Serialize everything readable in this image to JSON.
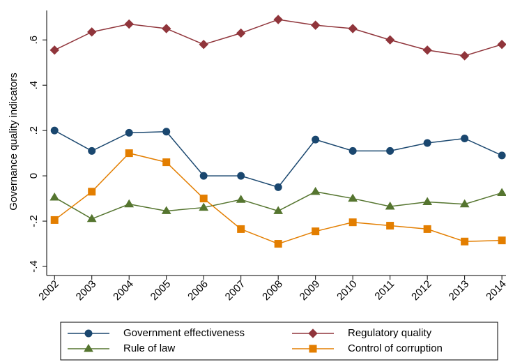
{
  "chart_data": {
    "type": "line",
    "y_label": "Governance quality indicators",
    "x": [
      2002,
      2003,
      2004,
      2005,
      2006,
      2007,
      2008,
      2009,
      2010,
      2011,
      2012,
      2013,
      2014
    ],
    "xlim": [
      2001.79,
      2014.11
    ],
    "xticks": [
      2002,
      2003,
      2004,
      2005,
      2006,
      2007,
      2008,
      2009,
      2010,
      2011,
      2012,
      2013,
      2014
    ],
    "ylim": [
      -0.44,
      0.73
    ],
    "yticks": [
      {
        "value": -0.4,
        "label": "-.4"
      },
      {
        "value": -0.2,
        "label": "-.2"
      },
      0,
      {
        "value": 0.2,
        "label": ".2"
      },
      {
        "value": 0.4,
        "label": ".4"
      },
      {
        "value": 0.6,
        "label": ".6"
      }
    ],
    "series": [
      {
        "name": "Government effectiveness",
        "color": "#1a476f",
        "marker": "circle",
        "values": [
          0.2,
          0.11,
          0.19,
          0.195,
          0.0,
          0.0,
          -0.05,
          0.16,
          0.11,
          0.11,
          0.145,
          0.165,
          0.09
        ]
      },
      {
        "name": "Regulatory quality",
        "color": "#90353b",
        "marker": "diamond",
        "values": [
          0.555,
          0.635,
          0.67,
          0.65,
          0.58,
          0.63,
          0.69,
          0.665,
          0.65,
          0.6,
          0.555,
          0.53,
          0.58
        ]
      },
      {
        "name": "Rule of law",
        "color": "#55752f",
        "marker": "triangle",
        "values": [
          -0.095,
          -0.19,
          -0.125,
          -0.155,
          -0.14,
          -0.105,
          -0.155,
          -0.07,
          -0.1,
          -0.135,
          -0.115,
          -0.125,
          -0.075
        ]
      },
      {
        "name": "Control of corruption",
        "color": "#e37e00",
        "marker": "square",
        "values": [
          -0.195,
          -0.07,
          0.1,
          0.06,
          -0.1,
          -0.235,
          -0.3,
          -0.245,
          -0.205,
          -0.22,
          -0.235,
          -0.29,
          -0.285
        ]
      }
    ]
  }
}
